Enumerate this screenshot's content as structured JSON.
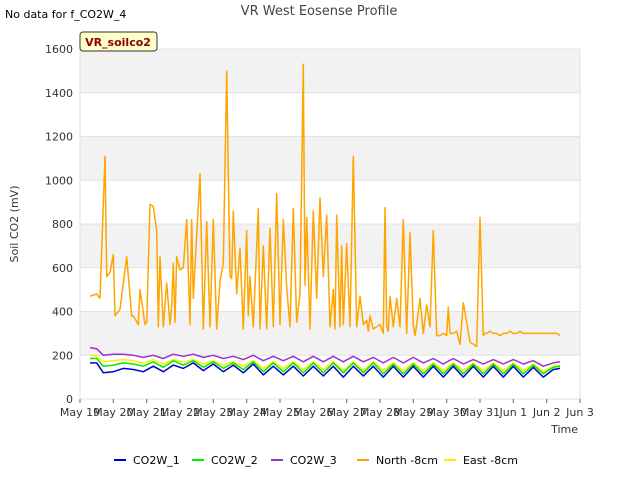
{
  "chart_data": {
    "type": "line",
    "title": "VR West Eosense Profile",
    "note": "No data for f_CO2W_4",
    "badge": "VR_soilco2",
    "xlabel": "Time",
    "ylabel": "Soil CO2 (mV)",
    "ylim": [
      0,
      1600
    ],
    "yticks": [
      0,
      200,
      400,
      600,
      800,
      1000,
      1200,
      1400,
      1600
    ],
    "xlim": [
      19,
      34
    ],
    "xticks": [
      {
        "value": 19,
        "label": "May 19"
      },
      {
        "value": 20,
        "label": "May 20"
      },
      {
        "value": 21,
        "label": "May 21"
      },
      {
        "value": 22,
        "label": "May 22"
      },
      {
        "value": 23,
        "label": "May 23"
      },
      {
        "value": 24,
        "label": "May 24"
      },
      {
        "value": 25,
        "label": "May 25"
      },
      {
        "value": 26,
        "label": "May 26"
      },
      {
        "value": 27,
        "label": "May 27"
      },
      {
        "value": 28,
        "label": "May 28"
      },
      {
        "value": 29,
        "label": "May 29"
      },
      {
        "value": 30,
        "label": "May 30"
      },
      {
        "value": 31,
        "label": "May 31"
      },
      {
        "value": 32,
        "label": "Jun 1"
      },
      {
        "value": 33,
        "label": "Jun 2"
      },
      {
        "value": 34,
        "label": "Jun 3"
      }
    ],
    "grid": true,
    "legend_position": "bottom",
    "series": [
      {
        "name": "CO2W_1",
        "color": "#0000cc",
        "x": [
          19.3,
          19.5,
          19.7,
          20.0,
          20.3,
          20.6,
          20.9,
          21.2,
          21.5,
          21.8,
          22.1,
          22.4,
          22.7,
          23.0,
          23.3,
          23.6,
          23.9,
          24.2,
          24.5,
          24.8,
          25.1,
          25.4,
          25.7,
          26.0,
          26.3,
          26.6,
          26.9,
          27.2,
          27.5,
          27.8,
          28.1,
          28.4,
          28.7,
          29.0,
          29.3,
          29.6,
          29.9,
          30.2,
          30.5,
          30.8,
          31.1,
          31.4,
          31.7,
          32.0,
          32.3,
          32.6,
          32.9,
          33.2,
          33.4
        ],
        "values": [
          165,
          165,
          120,
          125,
          140,
          135,
          125,
          150,
          125,
          155,
          140,
          165,
          130,
          160,
          125,
          155,
          120,
          160,
          110,
          150,
          110,
          150,
          105,
          150,
          105,
          150,
          100,
          150,
          105,
          150,
          100,
          150,
          100,
          150,
          100,
          150,
          100,
          150,
          100,
          150,
          100,
          150,
          100,
          150,
          100,
          145,
          100,
          135,
          140
        ]
      },
      {
        "name": "CO2W_2",
        "color": "#00ee00",
        "x": [
          19.3,
          19.5,
          19.7,
          20.0,
          20.3,
          20.6,
          20.9,
          21.2,
          21.5,
          21.8,
          22.1,
          22.4,
          22.7,
          23.0,
          23.3,
          23.6,
          23.9,
          24.2,
          24.5,
          24.8,
          25.1,
          25.4,
          25.7,
          26.0,
          26.3,
          26.6,
          26.9,
          27.2,
          27.5,
          27.8,
          28.1,
          28.4,
          28.7,
          29.0,
          29.3,
          29.6,
          29.9,
          30.2,
          30.5,
          30.8,
          31.1,
          31.4,
          31.7,
          32.0,
          32.3,
          32.6,
          32.9,
          33.2,
          33.4
        ],
        "values": [
          185,
          185,
          150,
          155,
          165,
          160,
          150,
          170,
          145,
          175,
          155,
          175,
          145,
          170,
          140,
          165,
          135,
          170,
          125,
          165,
          125,
          165,
          120,
          165,
          120,
          165,
          120,
          165,
          120,
          165,
          115,
          160,
          115,
          160,
          115,
          160,
          115,
          160,
          115,
          160,
          115,
          160,
          115,
          160,
          115,
          155,
          115,
          145,
          150
        ]
      },
      {
        "name": "CO2W_3",
        "color": "#9933cc",
        "x": [
          19.3,
          19.5,
          19.7,
          20.0,
          20.3,
          20.6,
          20.9,
          21.2,
          21.5,
          21.8,
          22.1,
          22.4,
          22.7,
          23.0,
          23.3,
          23.6,
          23.9,
          24.2,
          24.5,
          24.8,
          25.1,
          25.4,
          25.7,
          26.0,
          26.3,
          26.6,
          26.9,
          27.2,
          27.5,
          27.8,
          28.1,
          28.4,
          28.7,
          29.0,
          29.3,
          29.6,
          29.9,
          30.2,
          30.5,
          30.8,
          31.1,
          31.4,
          31.7,
          32.0,
          32.3,
          32.6,
          32.9,
          33.2,
          33.4
        ],
        "values": [
          235,
          230,
          200,
          205,
          205,
          200,
          190,
          200,
          185,
          205,
          195,
          205,
          190,
          200,
          185,
          195,
          180,
          200,
          175,
          195,
          175,
          195,
          170,
          195,
          170,
          195,
          170,
          195,
          170,
          190,
          165,
          190,
          165,
          190,
          165,
          185,
          160,
          185,
          160,
          180,
          160,
          180,
          160,
          180,
          160,
          175,
          150,
          165,
          170
        ]
      },
      {
        "name": "North -8cm",
        "color": "#ffa500",
        "x": [
          19.3,
          19.5,
          19.6,
          19.75,
          19.8,
          19.9,
          20.0,
          20.05,
          20.2,
          20.4,
          20.55,
          20.6,
          20.75,
          20.8,
          20.95,
          21.0,
          21.1,
          21.2,
          21.3,
          21.35,
          21.4,
          21.5,
          21.6,
          21.7,
          21.75,
          21.8,
          21.85,
          21.9,
          22.0,
          22.1,
          22.2,
          22.3,
          22.35,
          22.4,
          22.6,
          22.7,
          22.8,
          22.9,
          23.0,
          23.1,
          23.2,
          23.3,
          23.4,
          23.5,
          23.55,
          23.6,
          23.7,
          23.8,
          23.9,
          24.0,
          24.05,
          24.1,
          24.2,
          24.35,
          24.4,
          24.5,
          24.6,
          24.7,
          24.8,
          24.9,
          25.0,
          25.1,
          25.2,
          25.3,
          25.4,
          25.5,
          25.6,
          25.7,
          25.75,
          25.8,
          25.9,
          26.0,
          26.1,
          26.2,
          26.3,
          26.4,
          26.5,
          26.6,
          26.65,
          26.7,
          26.8,
          26.85,
          26.9,
          27.0,
          27.1,
          27.2,
          27.3,
          27.4,
          27.5,
          27.6,
          27.65,
          27.7,
          27.8,
          27.9,
          28.0,
          28.1,
          28.15,
          28.2,
          28.25,
          28.3,
          28.4,
          28.5,
          28.6,
          28.7,
          28.8,
          28.9,
          29.0,
          29.05,
          29.1,
          29.2,
          29.3,
          29.4,
          29.5,
          29.6,
          29.7,
          29.8,
          29.9,
          30.0,
          30.05,
          30.1,
          30.2,
          30.3,
          30.4,
          30.5,
          30.6,
          30.7,
          30.8,
          30.9,
          31.0,
          31.1,
          31.15,
          31.2,
          31.3,
          31.4,
          31.5,
          31.6,
          31.7,
          31.8,
          31.9,
          32.0,
          32.1,
          32.2,
          32.3,
          32.4,
          32.5,
          32.6,
          32.7,
          32.8,
          32.9,
          33.0,
          33.05,
          33.1,
          33.2,
          33.3,
          33.4
        ],
        "values": [
          470,
          480,
          460,
          1110,
          560,
          580,
          660,
          380,
          410,
          650,
          380,
          380,
          340,
          500,
          340,
          350,
          890,
          880,
          770,
          330,
          650,
          330,
          530,
          340,
          420,
          620,
          350,
          650,
          590,
          600,
          820,
          340,
          820,
          460,
          1030,
          320,
          810,
          330,
          820,
          320,
          540,
          620,
          1500,
          560,
          550,
          860,
          480,
          690,
          320,
          770,
          380,
          560,
          330,
          870,
          320,
          700,
          320,
          780,
          330,
          940,
          340,
          820,
          510,
          330,
          870,
          350,
          480,
          1530,
          520,
          830,
          320,
          860,
          460,
          920,
          560,
          840,
          330,
          500,
          320,
          840,
          330,
          700,
          340,
          710,
          330,
          1110,
          330,
          470,
          340,
          360,
          310,
          380,
          320,
          330,
          340,
          300,
          875,
          330,
          310,
          470,
          330,
          460,
          330,
          820,
          300,
          760,
          340,
          290,
          340,
          460,
          300,
          430,
          330,
          770,
          290,
          290,
          300,
          290,
          420,
          300,
          300,
          310,
          250,
          440,
          350,
          260,
          250,
          240,
          830,
          290,
          300,
          300,
          310,
          300,
          300,
          290,
          300,
          300,
          310,
          300,
          300,
          310,
          300,
          300,
          300,
          300,
          300,
          300,
          300,
          300,
          300,
          300,
          300,
          300,
          290
        ]
      },
      {
        "name": "East -8cm",
        "color": "#ffee00",
        "x": [
          19.3,
          19.5,
          19.7,
          20.0,
          20.3,
          20.6,
          20.9,
          21.2,
          21.5,
          21.8,
          22.1,
          22.4,
          22.7,
          23.0,
          23.3,
          23.6,
          23.9,
          24.2,
          24.5,
          24.8,
          25.1,
          25.4,
          25.7,
          26.0,
          26.3,
          26.6,
          26.9,
          27.2,
          27.5,
          27.8,
          28.1,
          28.4,
          28.7,
          29.0,
          29.3,
          29.6,
          29.9,
          30.2,
          30.5,
          30.8,
          31.1,
          31.4,
          31.7,
          32.0,
          32.3,
          32.6,
          32.9,
          33.2,
          33.4
        ],
        "values": [
          200,
          195,
          170,
          175,
          180,
          175,
          165,
          180,
          160,
          180,
          170,
          180,
          160,
          175,
          155,
          170,
          150,
          175,
          140,
          170,
          140,
          170,
          135,
          170,
          135,
          170,
          130,
          170,
          130,
          170,
          130,
          165,
          130,
          165,
          130,
          165,
          130,
          165,
          130,
          165,
          130,
          165,
          130,
          165,
          130,
          160,
          125,
          150,
          155
        ]
      }
    ]
  }
}
